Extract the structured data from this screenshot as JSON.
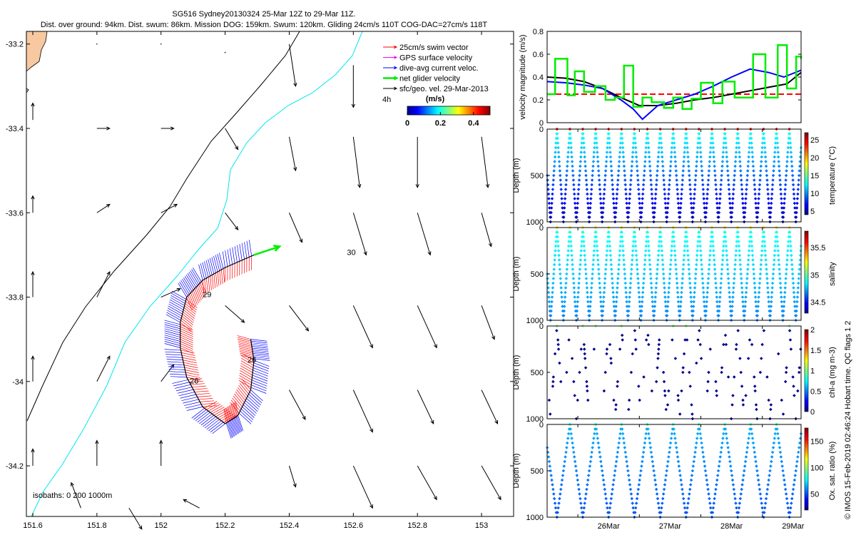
{
  "header": {
    "title_line1": "SG516 Sydney20130324 25-Mar 12Z to 29-Mar 11Z.",
    "title_line2": "Dist. over ground: 94km. Dist. swum: 86km. Mission DOG: 159km. Swum: 120km. Gliding 24cm/s 110T COG-DAC=27cm/s 118T"
  },
  "colors": {
    "swim_vector": "#ff0000",
    "gps_surface": "#ff00ff",
    "dive_avg": "#0000ff",
    "net_glider": "#00ee00",
    "sfc_geo": "#000000",
    "coastline_land": "#f8c8a0",
    "isobath_200": "#00e5ee",
    "isobath_1000": "#000000",
    "ref_line": "#ff0000"
  },
  "map": {
    "legend": [
      {
        "label": "25cm/s swim vector",
        "color_key": "swim_vector"
      },
      {
        "label": "GPS surface velocity",
        "color_key": "gps_surface"
      },
      {
        "label": "dive-avg current veloc.",
        "color_key": "dive_avg"
      },
      {
        "label": "net glider velocity",
        "color_key": "net_glider"
      },
      {
        "label": "sfc/geo. vel. 29-Mar-2013",
        "color_key": "sfc_geo"
      }
    ],
    "legend_extra": "4h",
    "colorbar_title": "(m/s)",
    "colorbar_ticks": [
      "0",
      "0.2",
      "0.4"
    ],
    "isobath_label": "isobaths: 0  200  1000m",
    "annotations": [
      {
        "text": "30",
        "lon": 152.58,
        "lat": -33.7
      },
      {
        "text": "29",
        "lon": 152.13,
        "lat": -33.8
      },
      {
        "text": "26",
        "lon": 152.27,
        "lat": -33.955
      },
      {
        "text": "26",
        "lon": 152.09,
        "lat": -34.005
      }
    ]
  },
  "chart_data": [
    {
      "type": "scatter",
      "title": "",
      "xlabel": "",
      "ylabel": "",
      "xlim": [
        151.58,
        153.1
      ],
      "ylim": [
        -34.32,
        -33.17
      ],
      "x_ticks": [
        151.6,
        151.8,
        152,
        152.2,
        152.4,
        152.6,
        152.8,
        153
      ],
      "x_tick_labels": [
        "151.6",
        "151.8",
        "152",
        "152.2",
        "152.4",
        "152.6",
        "152.8",
        "153"
      ],
      "y_ticks": [
        -33.2,
        -33.4,
        -33.6,
        -33.8,
        -34,
        -34.2
      ],
      "y_tick_labels": [
        "-33.2",
        "-33.4",
        "-33.6",
        "-33.8",
        "-34",
        "-34.2"
      ],
      "glider_track": [
        [
          152.28,
          -33.9
        ],
        [
          152.29,
          -33.95
        ],
        [
          152.28,
          -34.02
        ],
        [
          152.24,
          -34.08
        ],
        [
          152.2,
          -34.1
        ],
        [
          152.13,
          -34.06
        ],
        [
          152.08,
          -33.99
        ],
        [
          152.06,
          -33.92
        ],
        [
          152.06,
          -33.86
        ],
        [
          152.08,
          -33.8
        ],
        [
          152.13,
          -33.76
        ],
        [
          152.2,
          -33.73
        ],
        [
          152.29,
          -33.7
        ]
      ],
      "net_glider_velocity": {
        "lon": 152.29,
        "lat": -33.7,
        "dlon": 0.08,
        "dlat": 0.02
      },
      "sfc_vectors": [
        [
          152.4,
          -33.2,
          0.02,
          -0.1
        ],
        [
          152.6,
          -33.25,
          0.0,
          -0.1
        ],
        [
          152.0,
          -33.2,
          0.0,
          0.0
        ],
        [
          152.2,
          -33.22,
          0.0,
          0.0
        ],
        [
          151.8,
          -33.2,
          0.0,
          0.0
        ],
        [
          151.6,
          -33.38,
          0.0,
          0.04
        ],
        [
          151.8,
          -33.4,
          0.04,
          0.0
        ],
        [
          152.0,
          -33.4,
          0.04,
          0.0
        ],
        [
          152.2,
          -33.4,
          0.04,
          -0.05
        ],
        [
          152.4,
          -33.42,
          0.02,
          -0.08
        ],
        [
          152.6,
          -33.42,
          0.02,
          -0.12
        ],
        [
          152.8,
          -33.42,
          0.0,
          -0.12
        ],
        [
          153.0,
          -33.42,
          0.02,
          -0.12
        ],
        [
          151.6,
          -33.6,
          0.0,
          0.04
        ],
        [
          151.8,
          -33.6,
          0.04,
          0.02
        ],
        [
          152.0,
          -33.6,
          0.05,
          0.02
        ],
        [
          152.2,
          -33.6,
          0.04,
          -0.04
        ],
        [
          152.4,
          -33.6,
          0.04,
          -0.07
        ],
        [
          152.6,
          -33.6,
          0.04,
          -0.1
        ],
        [
          152.8,
          -33.6,
          0.04,
          -0.1
        ],
        [
          153.0,
          -33.6,
          0.03,
          -0.08
        ],
        [
          151.6,
          -33.8,
          0.0,
          0.06
        ],
        [
          151.8,
          -33.8,
          0.04,
          0.06
        ],
        [
          152.0,
          -33.8,
          0.06,
          0.02
        ],
        [
          152.2,
          -33.82,
          0.06,
          -0.04
        ],
        [
          152.4,
          -33.82,
          0.06,
          -0.06
        ],
        [
          152.6,
          -33.82,
          0.06,
          -0.1
        ],
        [
          152.8,
          -33.82,
          0.06,
          -0.1
        ],
        [
          153.0,
          -33.82,
          0.04,
          -0.08
        ],
        [
          151.6,
          -34.0,
          0.0,
          0.06
        ],
        [
          151.8,
          -34.0,
          0.04,
          0.06
        ],
        [
          152.0,
          -34.0,
          0.04,
          0.04
        ],
        [
          152.4,
          -34.02,
          0.05,
          -0.07
        ],
        [
          152.6,
          -34.02,
          0.06,
          -0.1
        ],
        [
          152.8,
          -34.02,
          0.05,
          -0.08
        ],
        [
          153.0,
          -34.02,
          0.05,
          -0.08
        ],
        [
          151.6,
          -34.2,
          0.0,
          0.04
        ],
        [
          151.8,
          -34.2,
          0.0,
          0.06
        ],
        [
          152.0,
          -34.2,
          0.0,
          0.06
        ],
        [
          152.4,
          -34.2,
          0.02,
          -0.05
        ],
        [
          152.6,
          -34.2,
          0.06,
          -0.1
        ],
        [
          152.8,
          -34.2,
          0.06,
          -0.08
        ],
        [
          153.0,
          -34.2,
          0.06,
          -0.08
        ],
        [
          151.75,
          -34.3,
          -0.03,
          0.06
        ],
        [
          151.9,
          -34.3,
          0.04,
          -0.05
        ],
        [
          152.12,
          -34.3,
          -0.05,
          0.02
        ]
      ]
    },
    {
      "type": "line",
      "title": "",
      "xlabel": "",
      "ylabel": "velocity magnitude (m/s)",
      "ylim": [
        0,
        0.8
      ],
      "y_ticks": [
        0,
        0.2,
        0.4,
        0.6,
        0.8
      ],
      "y_tick_labels": [
        "0",
        "0.2",
        "0.4",
        "0.6",
        "0.8"
      ],
      "xlim": [
        25.5,
        29.63
      ],
      "reference_line": 0.25,
      "series": [
        {
          "color_key": "isobath_1000",
          "x": [
            25.5,
            25.8,
            26.1,
            26.4,
            26.7,
            27.0,
            27.3,
            27.6,
            27.9,
            28.2,
            28.5,
            28.8,
            29.1,
            29.4,
            29.63
          ],
          "y": [
            0.4,
            0.39,
            0.36,
            0.3,
            0.22,
            0.15,
            0.15,
            0.17,
            0.2,
            0.22,
            0.25,
            0.28,
            0.31,
            0.34,
            0.44
          ]
        },
        {
          "color_key": "dive_avg",
          "x": [
            25.5,
            25.8,
            26.1,
            26.4,
            26.7,
            26.9,
            27.05,
            27.3,
            27.6,
            27.9,
            28.2,
            28.5,
            28.8,
            29.1,
            29.35,
            29.63
          ],
          "y": [
            0.36,
            0.35,
            0.33,
            0.3,
            0.2,
            0.12,
            0.03,
            0.15,
            0.2,
            0.25,
            0.32,
            0.4,
            0.47,
            0.44,
            0.4,
            0.46
          ]
        },
        {
          "color_key": "net_glider",
          "step": true,
          "x": [
            25.5,
            25.63,
            25.83,
            25.95,
            26.1,
            26.28,
            26.45,
            26.6,
            26.75,
            26.9,
            27.05,
            27.2,
            27.4,
            27.55,
            27.7,
            27.85,
            28.0,
            28.2,
            28.35,
            28.55,
            28.7,
            28.85,
            29.05,
            29.25,
            29.4,
            29.55,
            29.63
          ],
          "y": [
            0.25,
            0.56,
            0.24,
            0.45,
            0.27,
            0.32,
            0.2,
            0.22,
            0.5,
            0.14,
            0.22,
            0.18,
            0.13,
            0.22,
            0.12,
            0.21,
            0.35,
            0.17,
            0.36,
            0.22,
            0.22,
            0.6,
            0.22,
            0.68,
            0.3,
            0.58,
            0.56
          ]
        }
      ]
    },
    {
      "type": "scatter",
      "title": "",
      "ylabel": "Depth (m)",
      "ylim": [
        1000,
        0
      ],
      "y_tick_labels": [
        "0",
        "500",
        "1000"
      ],
      "colorbar": {
        "label": "temperature (°C)",
        "ticks": [
          "5",
          "10",
          "15",
          "20",
          "25"
        ],
        "range": [
          4,
          27
        ]
      },
      "profile_period_days": 0.21,
      "max_depth_m": 1000
    },
    {
      "type": "scatter",
      "title": "",
      "ylabel": "Depth (m)",
      "ylim": [
        1000,
        0
      ],
      "y_tick_labels": [
        "0",
        "500",
        "1000"
      ],
      "colorbar": {
        "label": "salinity",
        "ticks": [
          "34.5",
          "35",
          "35.5"
        ],
        "range": [
          34.3,
          35.8
        ]
      },
      "profile_period_days": 0.21,
      "max_depth_m": 1000
    },
    {
      "type": "scatter",
      "title": "",
      "ylabel": "Depth (m)",
      "ylim": [
        1000,
        0
      ],
      "y_tick_labels": [
        "0",
        "500",
        "1000"
      ],
      "colorbar": {
        "label": "chl-a (mg m-3)",
        "ticks": [
          "0",
          "0.5",
          "1",
          "1.5",
          "2"
        ],
        "range": [
          0,
          2
        ]
      },
      "profile_period_days": 0.21,
      "max_depth_m": 1000
    },
    {
      "type": "scatter",
      "title": "",
      "ylabel": "Depth (m)",
      "ylim": [
        1000,
        0
      ],
      "y_tick_labels": [
        "0",
        "500",
        "1000"
      ],
      "x_tick_labels": [
        "26Mar",
        "27Mar",
        "28Mar",
        "29Mar"
      ],
      "x_ticks": [
        26,
        27,
        28,
        29
      ],
      "colorbar": {
        "label": "Ox. sat. ratio (%)",
        "ticks": [
          "50",
          "100",
          "150"
        ],
        "range": [
          20,
          175
        ]
      },
      "profile_period_days": 0.42,
      "max_depth_m": 1000
    }
  ],
  "footer": {
    "side_note": "© IMOS 15-Feb-2019 02:46:24 Hobart time. QC flags 1  2"
  }
}
